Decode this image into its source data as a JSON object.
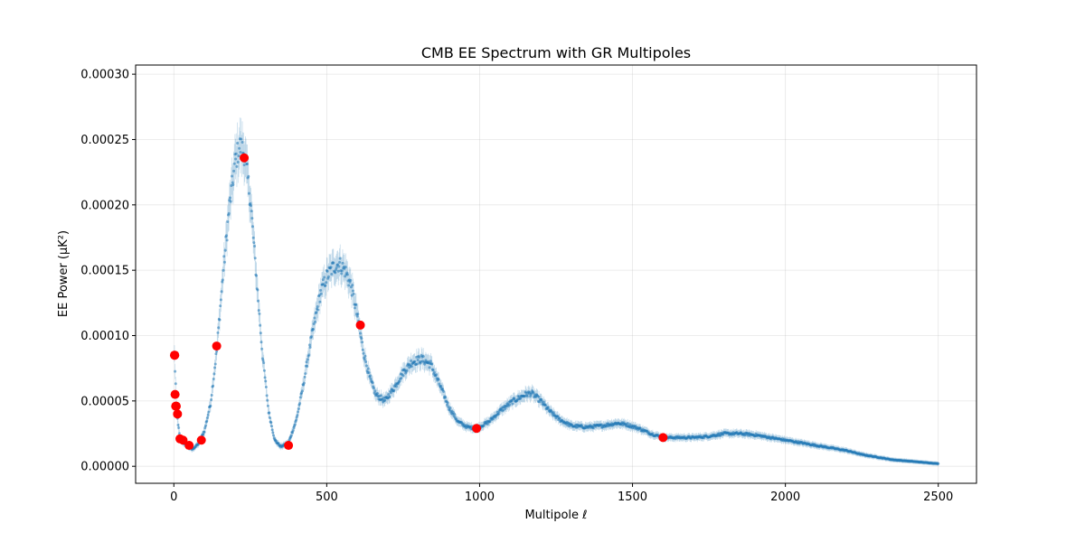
{
  "chart_data": {
    "type": "scatter",
    "title": "CMB EE Spectrum with GR Multipoles",
    "xlabel": "Multipole ℓ",
    "ylabel": "EE Power (μK²)",
    "xlim": [
      -125,
      2625
    ],
    "ylim": [
      -1.3e-05,
      0.000307
    ],
    "x_ticks": [
      0,
      500,
      1000,
      1500,
      2000,
      2500
    ],
    "x_tick_labels": [
      "0",
      "500",
      "1000",
      "1500",
      "2000",
      "2500"
    ],
    "y_ticks": [
      0.0,
      5e-05,
      0.0001,
      0.00015,
      0.0002,
      0.00025,
      0.0003
    ],
    "y_tick_labels": [
      "0.00000",
      "0.00005",
      "0.00010",
      "0.00015",
      "0.00020",
      "0.00025",
      "0.00030"
    ],
    "grid": true,
    "colors": {
      "spectrum": "#1f77b4",
      "gr_multipoles": "#ff0000"
    },
    "series": [
      {
        "marker": "small-dot-with-error-bars",
        "x": [
          2,
          10,
          20,
          40,
          60,
          80,
          100,
          120,
          140,
          160,
          180,
          200,
          215,
          230,
          250,
          270,
          290,
          310,
          330,
          350,
          375,
          400,
          420,
          440,
          460,
          480,
          500,
          520,
          540,
          560,
          580,
          600,
          620,
          640,
          660,
          690,
          720,
          750,
          780,
          810,
          840,
          870,
          900,
          930,
          960,
          990,
          1030,
          1070,
          1110,
          1150,
          1170,
          1200,
          1230,
          1260,
          1300,
          1350,
          1400,
          1450,
          1480,
          1520,
          1560,
          1600,
          1650,
          1700,
          1750,
          1800,
          1850,
          1900,
          1950,
          2000,
          2050,
          2100,
          2150,
          2200,
          2250,
          2300,
          2350,
          2400,
          2450,
          2500
        ],
        "y": [
          8.5e-05,
          4e-05,
          2.1e-05,
          1.6e-05,
          1.3e-05,
          1.7e-05,
          2.7e-05,
          4.8e-05,
          8.8e-05,
          0.000145,
          0.000195,
          0.000232,
          0.000245,
          0.00024,
          0.000205,
          0.000145,
          8.5e-05,
          4.2e-05,
          2e-05,
          1.5e-05,
          1.8e-05,
          3.5e-05,
          5.8e-05,
          8.5e-05,
          0.00011,
          0.000133,
          0.000145,
          0.000152,
          0.000155,
          0.00015,
          0.000138,
          0.000115,
          8.8e-05,
          6.8e-05,
          5.5e-05,
          5e-05,
          6e-05,
          7.2e-05,
          8e-05,
          8.2e-05,
          7.8e-05,
          6.2e-05,
          4.5e-05,
          3.4e-05,
          3e-05,
          2.9e-05,
          3.4e-05,
          4.3e-05,
          5e-05,
          5.5e-05,
          5.6e-05,
          5e-05,
          4.2e-05,
          3.6e-05,
          3.1e-05,
          3e-05,
          3.1e-05,
          3.3e-05,
          3.2e-05,
          2.9e-05,
          2.5e-05,
          2.2e-05,
          2.2e-05,
          2.2e-05,
          2.3e-05,
          2.5e-05,
          2.5e-05,
          2.4e-05,
          2.2e-05,
          2e-05,
          1.8e-05,
          1.6e-05,
          1.4e-05,
          1.2e-05,
          9e-06,
          7e-06,
          5e-06,
          4e-06,
          3e-06,
          2e-06
        ]
      },
      {
        "marker": "red-circle",
        "x": [
          2,
          3,
          4,
          6,
          8,
          12,
          20,
          30,
          50,
          90,
          140,
          230,
          375,
          610,
          990,
          1600
        ],
        "y": [
          8.5e-05,
          8.5e-05,
          5.5e-05,
          4.6e-05,
          4.6e-05,
          4e-05,
          2.1e-05,
          2e-05,
          1.6e-05,
          2e-05,
          9.2e-05,
          0.000236,
          1.6e-05,
          0.000108,
          2.9e-05,
          2.2e-05
        ]
      }
    ]
  }
}
